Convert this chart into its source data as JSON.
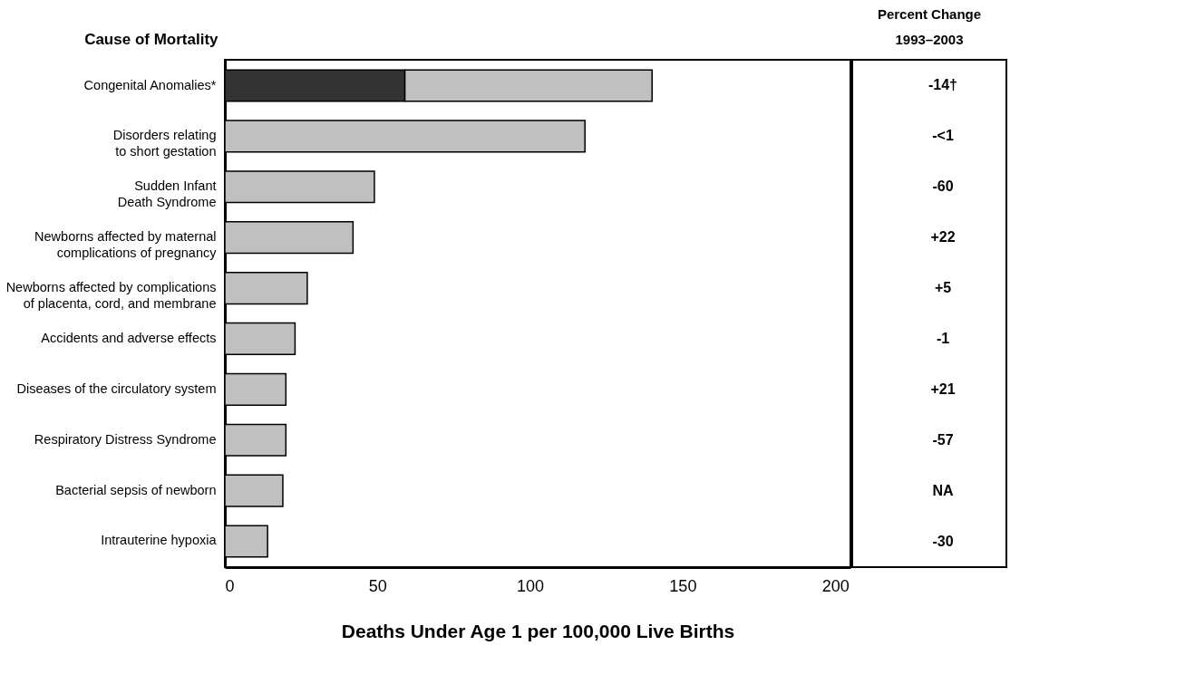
{
  "chart_data": {
    "type": "bar",
    "orientation": "horizontal",
    "stacked": true,
    "categories": [
      "Congenital Anomalies*",
      "Disorders relating\nto short gestation",
      "Sudden Infant\nDeath Syndrome",
      "Newborns affected by maternal\ncomplications of pregnancy",
      "Newborns affected by complications\nof placenta, cord, and membrane",
      "Accidents and adverse effects",
      "Diseases of the circulatory system",
      "Respiratory Distress Syndrome",
      "Bacterial sepsis of newborn",
      "Intrauterine hypoxia"
    ],
    "series": [
      {
        "color": "#333333",
        "values": [
          59,
          null,
          null,
          null,
          null,
          null,
          null,
          null,
          null,
          null
        ]
      },
      {
        "color": "#c0c0c0",
        "values": [
          81,
          118,
          49,
          42,
          27,
          23,
          20,
          20,
          19,
          14
        ]
      }
    ],
    "xlim": [
      0,
      205
    ],
    "xticks": [
      0,
      50,
      100,
      150,
      200
    ],
    "xlabel": "Deaths Under Age 1 per 100,000 Live Births",
    "ylabel": "Cause of Mortality",
    "annotations": [
      "Percent Change",
      "1993–2003",
      "-14†",
      "-<1",
      "-60",
      "+22",
      "+5",
      "-1",
      "+21",
      "-57",
      "NA",
      "-30"
    ],
    "grid": false
  }
}
